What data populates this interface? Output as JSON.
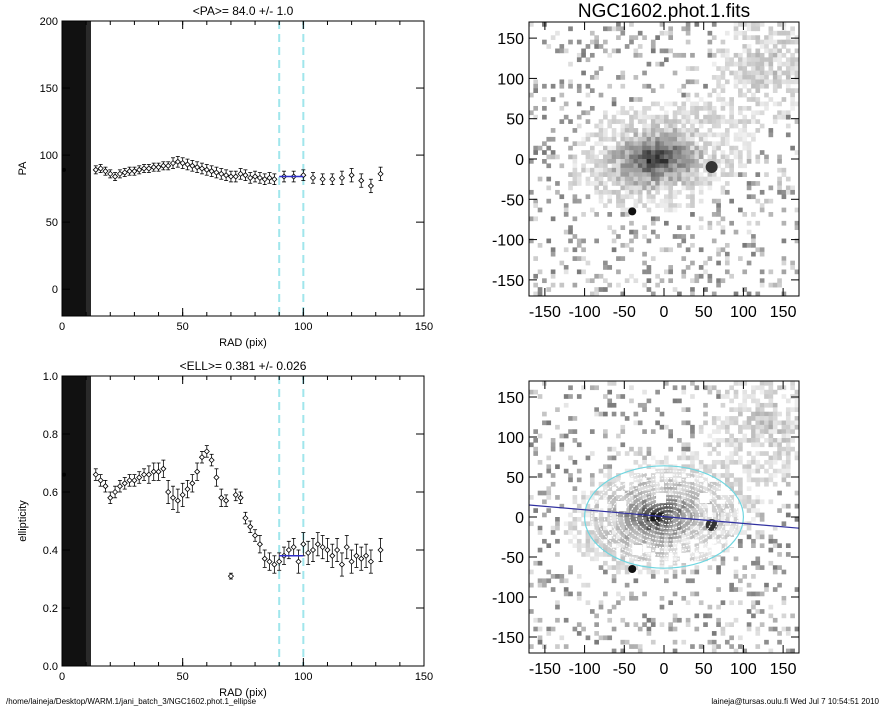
{
  "footer": {
    "path": "/home/laineja/Desktop/WARM.1/jani_batch_3/NGC1602.phot.1_ellipse",
    "stamp": "laineja@tursas.oulu.fi  Wed Jul  7 10:54:51 2010"
  },
  "chart_data": [
    {
      "type": "scatter",
      "title": "<PA>=  84.0 +/-   1.0",
      "xlabel": "RAD (pix)",
      "ylabel": "PA",
      "xlim": [
        0,
        150
      ],
      "ylim": [
        -20,
        200
      ],
      "xticks": [
        0,
        50,
        100,
        150
      ],
      "yticks": [
        0,
        50,
        100,
        150,
        200
      ],
      "dashed_lines_x": [
        90,
        100
      ],
      "dashed_color": "#a0e6ec",
      "black_band_x": [
        0,
        12
      ],
      "series": [
        {
          "x": [
            14,
            16,
            18,
            20,
            22,
            24,
            26,
            28,
            30,
            32,
            34,
            36,
            38,
            40,
            42,
            44,
            46,
            48,
            50,
            52,
            54,
            56,
            58,
            60,
            62,
            64,
            66,
            68,
            70,
            72,
            74,
            76,
            78,
            80,
            82,
            84,
            86,
            88,
            92,
            96,
            100,
            104,
            108,
            112,
            116,
            120,
            124,
            128,
            132
          ],
          "y": [
            89,
            90,
            88,
            86,
            84,
            86,
            87,
            88,
            88,
            89,
            90,
            90,
            91,
            91,
            92,
            92,
            94,
            95,
            94,
            93,
            92,
            91,
            90,
            89,
            88,
            87,
            86,
            85,
            84,
            84,
            86,
            85,
            83,
            84,
            83,
            82,
            83,
            82,
            84,
            84,
            85,
            83,
            82,
            82,
            83,
            85,
            81,
            77,
            86
          ],
          "err": [
            3,
            3,
            3,
            3,
            3,
            3,
            3,
            3,
            3,
            3,
            3,
            3,
            3,
            3,
            3,
            3,
            4,
            4,
            4,
            4,
            4,
            4,
            4,
            4,
            4,
            4,
            4,
            4,
            4,
            4,
            4,
            4,
            4,
            4,
            4,
            4,
            4,
            4,
            4,
            4,
            4,
            4,
            4,
            4,
            5,
            5,
            5,
            5,
            5
          ]
        }
      ],
      "fit_segment": {
        "x": [
          90,
          100
        ],
        "y": [
          84,
          84
        ],
        "color": "#2e2ec8"
      }
    },
    {
      "type": "scatter",
      "title": "<ELL>= 0.381 +/-  0.026",
      "xlabel": "RAD (pix)",
      "ylabel": "ellipticity",
      "xlim": [
        0,
        150
      ],
      "ylim": [
        0.0,
        1.0
      ],
      "xticks": [
        0,
        50,
        100,
        150
      ],
      "yticks": [
        0.0,
        0.2,
        0.4,
        0.6,
        0.8,
        1.0
      ],
      "dashed_lines_x": [
        90,
        100
      ],
      "dashed_color": "#a0e6ec",
      "black_band_x": [
        0,
        12
      ],
      "series": [
        {
          "x": [
            14,
            16,
            18,
            20,
            22,
            24,
            26,
            28,
            30,
            32,
            34,
            36,
            38,
            40,
            42,
            44,
            46,
            48,
            50,
            52,
            54,
            56,
            58,
            60,
            62,
            64,
            66,
            68,
            70,
            72,
            74,
            76,
            78,
            80,
            82,
            84,
            86,
            88,
            90,
            92,
            94,
            96,
            98,
            100,
            102,
            104,
            106,
            108,
            110,
            112,
            114,
            116,
            118,
            120,
            122,
            124,
            126,
            128,
            132
          ],
          "y": [
            0.66,
            0.64,
            0.62,
            0.58,
            0.6,
            0.62,
            0.63,
            0.64,
            0.64,
            0.65,
            0.66,
            0.66,
            0.67,
            0.67,
            0.68,
            0.6,
            0.58,
            0.57,
            0.59,
            0.61,
            0.63,
            0.67,
            0.72,
            0.74,
            0.71,
            0.65,
            0.58,
            0.57,
            0.31,
            0.59,
            0.58,
            0.51,
            0.48,
            0.45,
            0.42,
            0.37,
            0.36,
            0.35,
            0.36,
            0.38,
            0.4,
            0.41,
            0.36,
            0.42,
            0.39,
            0.4,
            0.42,
            0.41,
            0.4,
            0.38,
            0.4,
            0.35,
            0.41,
            0.36,
            0.38,
            0.37,
            0.38,
            0.36,
            0.4
          ],
          "err": [
            0.02,
            0.02,
            0.02,
            0.02,
            0.02,
            0.02,
            0.02,
            0.02,
            0.02,
            0.02,
            0.02,
            0.03,
            0.03,
            0.03,
            0.03,
            0.04,
            0.04,
            0.04,
            0.04,
            0.03,
            0.03,
            0.03,
            0.02,
            0.02,
            0.02,
            0.03,
            0.03,
            0.02,
            0.01,
            0.02,
            0.02,
            0.02,
            0.02,
            0.02,
            0.03,
            0.03,
            0.03,
            0.03,
            0.03,
            0.03,
            0.03,
            0.03,
            0.04,
            0.04,
            0.04,
            0.04,
            0.04,
            0.04,
            0.04,
            0.04,
            0.04,
            0.04,
            0.04,
            0.04,
            0.04,
            0.04,
            0.04,
            0.04,
            0.04
          ]
        }
      ],
      "fit_segment": {
        "x": [
          90,
          100
        ],
        "y": [
          0.38,
          0.38
        ],
        "color": "#2e2ec8"
      }
    },
    {
      "type": "heatmap",
      "title": "NGC1602.phot.1.fits",
      "xlim": [
        -170,
        170
      ],
      "ylim": [
        -170,
        170
      ],
      "xticks": [
        -150,
        -100,
        -50,
        0,
        50,
        100,
        150
      ],
      "yticks": [
        -150,
        -100,
        -50,
        0,
        50,
        100,
        150
      ],
      "galaxy": {
        "center": [
          -10,
          0
        ],
        "pa_deg": 84,
        "ellipticity": 0.381
      }
    },
    {
      "type": "heatmap",
      "title": "",
      "xlim": [
        -170,
        170
      ],
      "ylim": [
        -170,
        170
      ],
      "xticks": [
        -150,
        -100,
        -50,
        0,
        50,
        100,
        150
      ],
      "yticks": [
        -150,
        -100,
        -50,
        0,
        50,
        100,
        150
      ],
      "overlay": {
        "outer_ellipse": {
          "center": [
            0,
            0
          ],
          "semi_major": 100,
          "semi_minor": 64,
          "color": "#6fd6e0"
        },
        "contour_color": "#ffffff",
        "pa_line": {
          "y_at_xmin": 15,
          "y_at_xmax": -14,
          "color": "#3030a0"
        }
      }
    }
  ]
}
